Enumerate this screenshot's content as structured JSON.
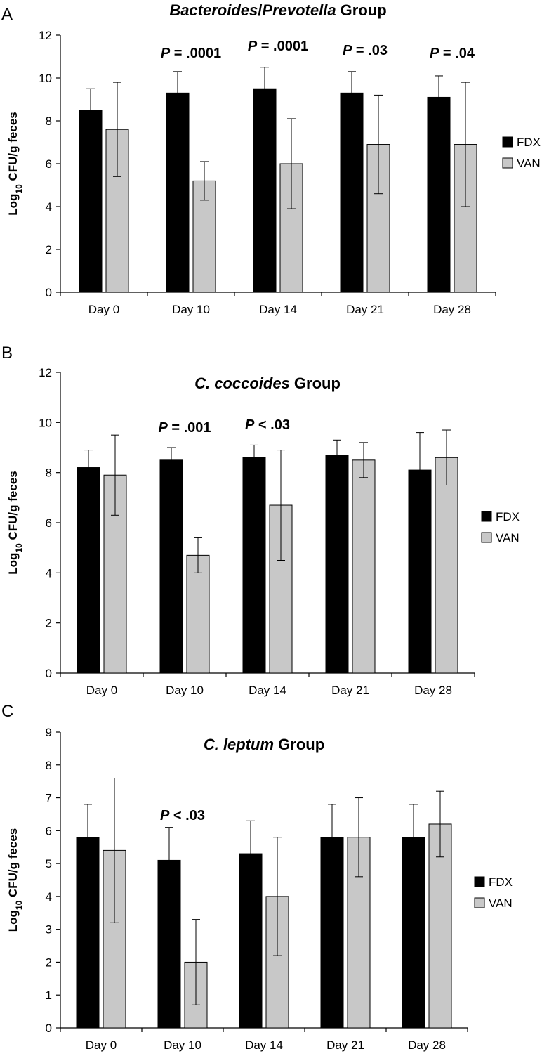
{
  "figure": {
    "panels": [
      "A",
      "B",
      "C"
    ]
  },
  "chart_data": [
    {
      "type": "bar",
      "panel": "A",
      "title": [
        {
          "text": "Bacteroides",
          "italic": true
        },
        {
          "text": "/",
          "italic": false
        },
        {
          "text": "Prevotella",
          "italic": true
        },
        {
          "text": " Group",
          "italic": false
        }
      ],
      "ylabel": "Log10 CFU/g feces",
      "ylabel_parts": {
        "pre": "Log",
        "sub": "10",
        "post": " CFU/g feces"
      },
      "ylim": [
        0,
        12
      ],
      "yticks": [
        0,
        2,
        4,
        6,
        8,
        10,
        12
      ],
      "categories": [
        "Day 0",
        "Day 10",
        "Day 14",
        "Day 21",
        "Day 28"
      ],
      "series": [
        {
          "name": "FDX",
          "color": "#000000",
          "values": [
            8.5,
            9.3,
            9.5,
            9.3,
            9.1
          ],
          "error": [
            1.0,
            1.0,
            1.0,
            1.0,
            1.0
          ]
        },
        {
          "name": "VAN",
          "color": "#c8c8c8",
          "values": [
            7.6,
            5.2,
            6.0,
            6.9,
            6.9
          ],
          "error": [
            2.2,
            0.9,
            2.1,
            2.3,
            2.9
          ]
        }
      ],
      "annotations": [
        {
          "category": "Day 10",
          "text": ".0001",
          "offset": 12.6
        },
        {
          "category": "Day 14",
          "text": ".0001",
          "offset": 12.9
        },
        {
          "category": "Day 21",
          "text": ".03",
          "offset": 12.8
        },
        {
          "category": "Day 28",
          "text": ".04",
          "offset": 12.7
        }
      ],
      "annotation_prefix": "P",
      "annotation_op_eq": "=",
      "annotation_op_lt": "<"
    },
    {
      "type": "bar",
      "panel": "B",
      "title": [
        {
          "text": "C. coccoides",
          "italic": true
        },
        {
          "text": " Group",
          "italic": false
        }
      ],
      "ylabel": "Log10 CFU/g feces",
      "ylabel_parts": {
        "pre": "Log",
        "sub": "10",
        "post": " CFU/g feces"
      },
      "ylim": [
        0,
        12
      ],
      "yticks": [
        0,
        2,
        4,
        6,
        8,
        10,
        12
      ],
      "categories": [
        "Day 0",
        "Day 10",
        "Day 14",
        "Day 21",
        "Day 28"
      ],
      "series": [
        {
          "name": "FDX",
          "color": "#000000",
          "values": [
            8.2,
            8.5,
            8.6,
            8.7,
            8.1
          ],
          "error": [
            0.7,
            0.5,
            0.5,
            0.6,
            1.5
          ]
        },
        {
          "name": "VAN",
          "color": "#c8c8c8",
          "values": [
            7.9,
            4.7,
            6.7,
            8.5,
            8.6
          ],
          "error": [
            1.6,
            0.7,
            2.2,
            0.7,
            1.1
          ]
        }
      ],
      "annotations": [
        {
          "category": "Day 10",
          "text": "= .001"
        },
        {
          "category": "Day 14",
          "text": "< .03"
        }
      ]
    },
    {
      "type": "bar",
      "panel": "C",
      "title": [
        {
          "text": "C. leptum",
          "italic": true
        },
        {
          "text": " Group",
          "italic": false
        }
      ],
      "ylabel": "Log10 CFU/g feces",
      "ylabel_parts": {
        "pre": "Log",
        "sub": "10",
        "post": " CFU/g feces"
      },
      "ylim": [
        0,
        9
      ],
      "yticks": [
        0,
        1,
        2,
        3,
        4,
        5,
        6,
        7,
        8,
        9
      ],
      "categories": [
        "Day 0",
        "Day 10",
        "Day 14",
        "Day 21",
        "Day 28"
      ],
      "series": [
        {
          "name": "FDX",
          "color": "#000000",
          "values": [
            5.8,
            5.1,
            5.3,
            5.8,
            5.8
          ],
          "error": [
            1.0,
            1.0,
            1.0,
            1.0,
            1.0
          ]
        },
        {
          "name": "VAN",
          "color": "#c8c8c8",
          "values": [
            5.4,
            2.0,
            4.0,
            5.8,
            6.2
          ],
          "error": [
            2.2,
            1.3,
            1.8,
            1.2,
            1.0
          ]
        }
      ],
      "annotations": [
        {
          "category": "Day 10",
          "text": "< .03"
        }
      ]
    }
  ]
}
